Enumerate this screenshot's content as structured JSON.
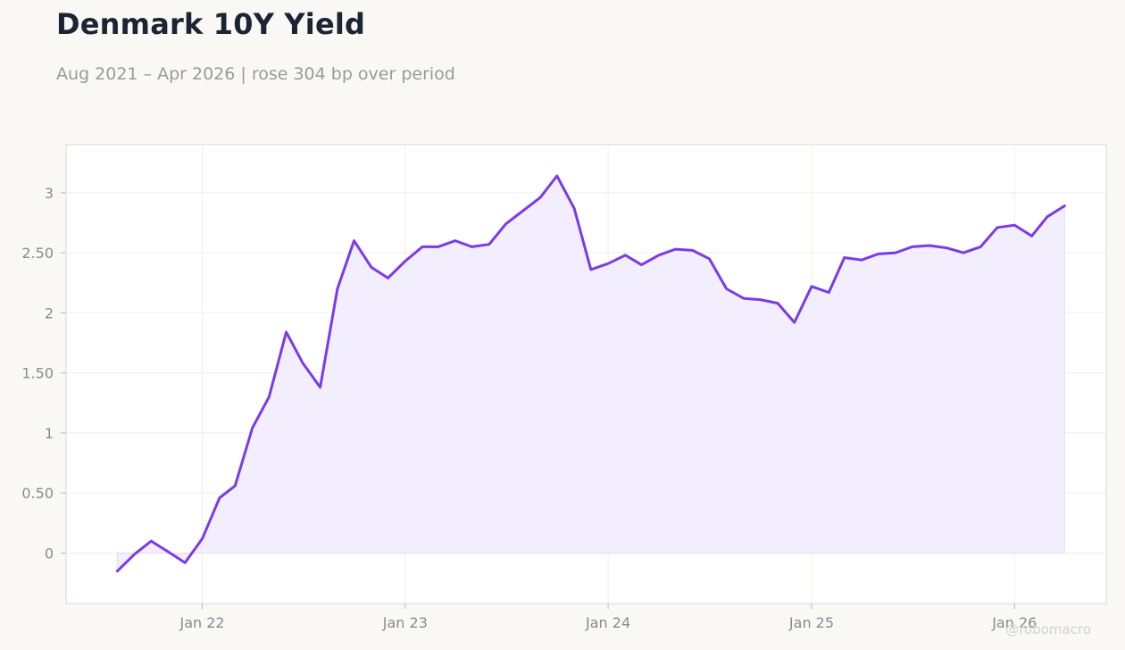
{
  "chart_data": {
    "type": "area",
    "title": "Denmark 10Y Yield",
    "subtitle": "Aug 2021 – Apr 2026 | rose 304 bp over period",
    "xlabel": "",
    "ylabel": "",
    "ylim": [
      -0.42,
      3.4
    ],
    "xlim": [
      "2021-05-01",
      "2026-06-15"
    ],
    "yticks": [
      0,
      0.5,
      1,
      1.5,
      2,
      2.5,
      3
    ],
    "ytick_labels": [
      "0",
      "0.50",
      "1",
      "1.50",
      "2",
      "2.50",
      "3"
    ],
    "xticks": [
      "2022-01-01",
      "2023-01-01",
      "2024-01-01",
      "2025-01-01",
      "2026-01-01"
    ],
    "xtick_labels": [
      "Jan 22",
      "Jan 23",
      "Jan 24",
      "Jan 25",
      "Jan 26"
    ],
    "grid": true,
    "line_color": "#7b3be6",
    "fill_color": "#f2eefd",
    "series": [
      {
        "x": [
          "2021-08-01",
          "2021-09-01",
          "2021-10-01",
          "2021-11-01",
          "2021-12-01",
          "2022-01-01",
          "2022-02-01",
          "2022-03-01",
          "2022-04-01",
          "2022-05-01",
          "2022-06-01",
          "2022-07-01",
          "2022-08-01",
          "2022-09-01",
          "2022-10-01",
          "2022-11-01",
          "2022-12-01",
          "2023-01-01",
          "2023-02-01",
          "2023-03-01",
          "2023-04-01",
          "2023-05-01",
          "2023-06-01",
          "2023-07-01",
          "2023-08-01",
          "2023-09-01",
          "2023-10-01",
          "2023-11-01",
          "2023-12-01",
          "2024-01-01",
          "2024-02-01",
          "2024-03-01",
          "2024-04-01",
          "2024-05-01",
          "2024-06-01",
          "2024-07-01",
          "2024-08-01",
          "2024-09-01",
          "2024-10-01",
          "2024-11-01",
          "2024-12-01",
          "2025-01-01",
          "2025-02-01",
          "2025-03-01",
          "2025-04-01",
          "2025-05-01",
          "2025-06-01",
          "2025-07-01",
          "2025-08-01",
          "2025-09-01",
          "2025-10-01",
          "2025-11-01",
          "2025-12-01",
          "2026-01-01",
          "2026-02-01",
          "2026-03-01",
          "2026-04-01"
        ],
        "values": [
          -0.15,
          -0.01,
          0.1,
          0.01,
          -0.08,
          0.12,
          0.46,
          0.56,
          1.04,
          1.3,
          1.84,
          1.58,
          1.38,
          2.2,
          2.6,
          2.38,
          2.29,
          2.43,
          2.55,
          2.55,
          2.6,
          2.55,
          2.57,
          2.74,
          2.85,
          2.96,
          3.14,
          2.87,
          2.36,
          2.41,
          2.48,
          2.4,
          2.48,
          2.53,
          2.52,
          2.45,
          2.2,
          2.12,
          2.11,
          2.08,
          1.92,
          2.22,
          2.17,
          2.46,
          2.44,
          2.49,
          2.5,
          2.55,
          2.56,
          2.54,
          2.5,
          2.55,
          2.71,
          2.73,
          2.64,
          2.8,
          2.89
        ]
      }
    ]
  },
  "watermark": "@robomacro"
}
